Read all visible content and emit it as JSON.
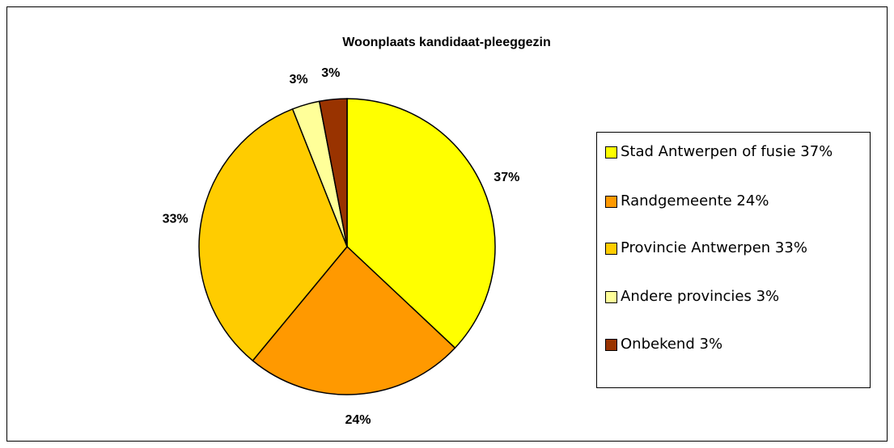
{
  "chart_data": {
    "type": "pie",
    "title": "Woonplaats kandidaat-pleeggezin",
    "categories": [
      "Stad Antwerpen of fusie 37%",
      "Randgemeente 24%",
      "Provincie Antwerpen 33%",
      "Andere provincies 3%",
      "Onbekend 3%"
    ],
    "values": [
      37,
      24,
      33,
      3,
      3
    ],
    "value_labels": [
      "37%",
      "24%",
      "33%",
      "3%",
      "3%"
    ],
    "colors": [
      "#ffff00",
      "#ff9900",
      "#ffcc00",
      "#ffff99",
      "#993300"
    ],
    "legend": "right"
  }
}
